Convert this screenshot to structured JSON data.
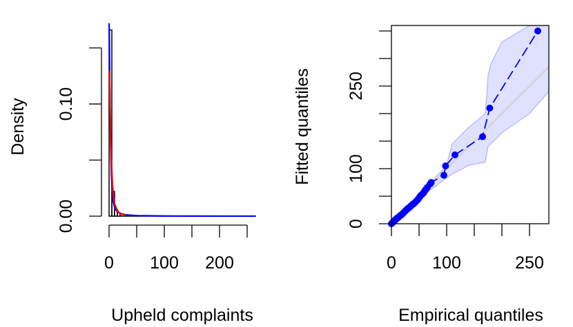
{
  "chart_data": [
    {
      "type": "histogram-density",
      "title": "",
      "xlabel": "Upheld complaints",
      "ylabel": "Density",
      "xlim": [
        0,
        265
      ],
      "ylim": [
        0,
        0.17
      ],
      "xticks": [
        0,
        50,
        100,
        150,
        200,
        250
      ],
      "xtick_labels": [
        "0",
        "",
        "100",
        "",
        "200",
        ""
      ],
      "yticks": [
        0,
        0.05,
        0.1,
        0.15
      ],
      "ytick_labels": [
        "0.00",
        "",
        "0.10",
        ""
      ],
      "histogram": {
        "color": "#000000",
        "bins": [
          {
            "x0": 0,
            "x1": 5,
            "density": 0.166
          },
          {
            "x0": 5,
            "x1": 10,
            "density": 0.022
          },
          {
            "x0": 10,
            "x1": 15,
            "density": 0.006
          },
          {
            "x0": 15,
            "x1": 20,
            "density": 0.003
          },
          {
            "x0": 20,
            "x1": 30,
            "density": 0.0015
          },
          {
            "x0": 30,
            "x1": 50,
            "density": 0.0007
          },
          {
            "x0": 50,
            "x1": 100,
            "density": 0.0002
          },
          {
            "x0": 100,
            "x1": 265,
            "density": 5e-05
          }
        ]
      },
      "series": [
        {
          "color": "#0000ff",
          "x": [
            0,
            0.5,
            1,
            2,
            3,
            4,
            5,
            6,
            8,
            10,
            12,
            15,
            20,
            30,
            50,
            100,
            150,
            200,
            265
          ],
          "y": [
            0.172,
            0.16,
            0.13,
            0.09,
            0.06,
            0.04,
            0.028,
            0.02,
            0.012,
            0.008,
            0.006,
            0.004,
            0.0025,
            0.0012,
            0.0005,
            0.00015,
            8e-05,
            5e-05,
            3e-05
          ]
        },
        {
          "color": "#ff0000",
          "x": [
            0,
            1,
            2,
            4,
            6,
            8,
            10,
            15,
            20,
            30
          ],
          "y": [
            0.13,
            0.12,
            0.09,
            0.05,
            0.03,
            0.018,
            0.011,
            0.005,
            0.002,
            0.0008
          ]
        }
      ]
    },
    {
      "type": "scatter",
      "title": "",
      "xlabel": "Empirical quantiles",
      "ylabel": "Fitted quantiles",
      "xlim": [
        0,
        285
      ],
      "ylim": [
        0,
        360
      ],
      "xticks": [
        0,
        50,
        100,
        150,
        200,
        250
      ],
      "xtick_labels": [
        "0",
        "",
        "100",
        "",
        "",
        "250"
      ],
      "yticks": [
        0,
        50,
        100,
        150,
        200,
        250,
        300,
        350
      ],
      "ytick_labels": [
        "0",
        "",
        "100",
        "",
        "",
        "250",
        "",
        ""
      ],
      "reference_line": {
        "color": "#d3d3d3",
        "from": [
          0,
          0
        ],
        "to": [
          285,
          285
        ]
      },
      "band": {
        "color": "#0000ff",
        "x": [
          0,
          10,
          20,
          30,
          40,
          50,
          60,
          70,
          80,
          90,
          100,
          110,
          140,
          170,
          175,
          180,
          200,
          250,
          285
        ],
        "lower": [
          0,
          9,
          18,
          27,
          35,
          44,
          52,
          61,
          68,
          76,
          83,
          90,
          106,
          112,
          140,
          145,
          165,
          200,
          240
        ],
        "upper": [
          0,
          11,
          23,
          33,
          43,
          53,
          63,
          73,
          85,
          95,
          108,
          145,
          175,
          200,
          270,
          290,
          330,
          360,
          360
        ]
      },
      "points": {
        "color": "#0000ff",
        "x": [
          0,
          1,
          2,
          3,
          4,
          5,
          6,
          7,
          8,
          9,
          10,
          12,
          14,
          16,
          18,
          20,
          22,
          24,
          26,
          28,
          30,
          32,
          34,
          36,
          38,
          40,
          42,
          45,
          48,
          50,
          52,
          55,
          58,
          60,
          62,
          65,
          70,
          72,
          95,
          98,
          115,
          165,
          178,
          265
        ],
        "y": [
          0,
          1,
          2,
          3,
          4,
          5,
          6,
          7,
          8,
          9,
          10,
          11,
          13,
          15,
          16,
          18,
          20,
          22,
          24,
          26,
          28,
          29,
          31,
          33,
          35,
          36,
          38,
          41,
          44,
          47,
          50,
          53,
          56,
          59,
          62,
          66,
          72,
          75,
          88,
          105,
          125,
          158,
          210,
          350
        ]
      }
    }
  ]
}
